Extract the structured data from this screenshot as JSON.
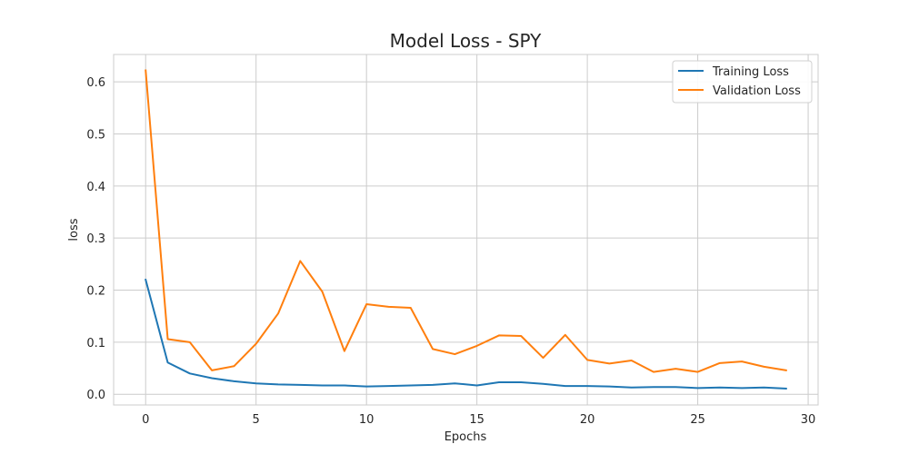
{
  "chart_data": {
    "type": "line",
    "title": "Model Loss - SPY",
    "xlabel": "Epochs",
    "ylabel": "loss",
    "xlim": [
      -1.45,
      30.45
    ],
    "ylim": [
      -0.0205,
      0.6525
    ],
    "xticks": [
      0,
      5,
      10,
      15,
      20,
      25,
      30
    ],
    "yticks": [
      0.0,
      0.1,
      0.2,
      0.3,
      0.4,
      0.5,
      0.6
    ],
    "xtick_labels": [
      "0",
      "5",
      "10",
      "15",
      "20",
      "25",
      "30"
    ],
    "ytick_labels": [
      "0.0",
      "0.1",
      "0.2",
      "0.3",
      "0.4",
      "0.5",
      "0.6"
    ],
    "grid": true,
    "legend_position": "top-right",
    "x": [
      0,
      1,
      2,
      3,
      4,
      5,
      6,
      7,
      8,
      9,
      10,
      11,
      12,
      13,
      14,
      15,
      16,
      17,
      18,
      19,
      20,
      21,
      22,
      23,
      24,
      25,
      26,
      27,
      28,
      29
    ],
    "series": [
      {
        "name": "Training Loss",
        "color": "#1f77b4",
        "values": [
          0.22,
          0.061,
          0.04,
          0.031,
          0.025,
          0.021,
          0.019,
          0.018,
          0.017,
          0.017,
          0.015,
          0.016,
          0.017,
          0.018,
          0.021,
          0.017,
          0.023,
          0.023,
          0.02,
          0.016,
          0.016,
          0.015,
          0.013,
          0.014,
          0.014,
          0.012,
          0.013,
          0.012,
          0.013,
          0.011
        ]
      },
      {
        "name": "Validation Loss",
        "color": "#ff7f0e",
        "values": [
          0.622,
          0.106,
          0.1,
          0.046,
          0.054,
          0.097,
          0.155,
          0.256,
          0.197,
          0.083,
          0.173,
          0.168,
          0.166,
          0.087,
          0.077,
          0.093,
          0.113,
          0.112,
          0.07,
          0.114,
          0.066,
          0.059,
          0.065,
          0.043,
          0.049,
          0.043,
          0.06,
          0.063,
          0.053,
          0.046
        ]
      }
    ]
  }
}
